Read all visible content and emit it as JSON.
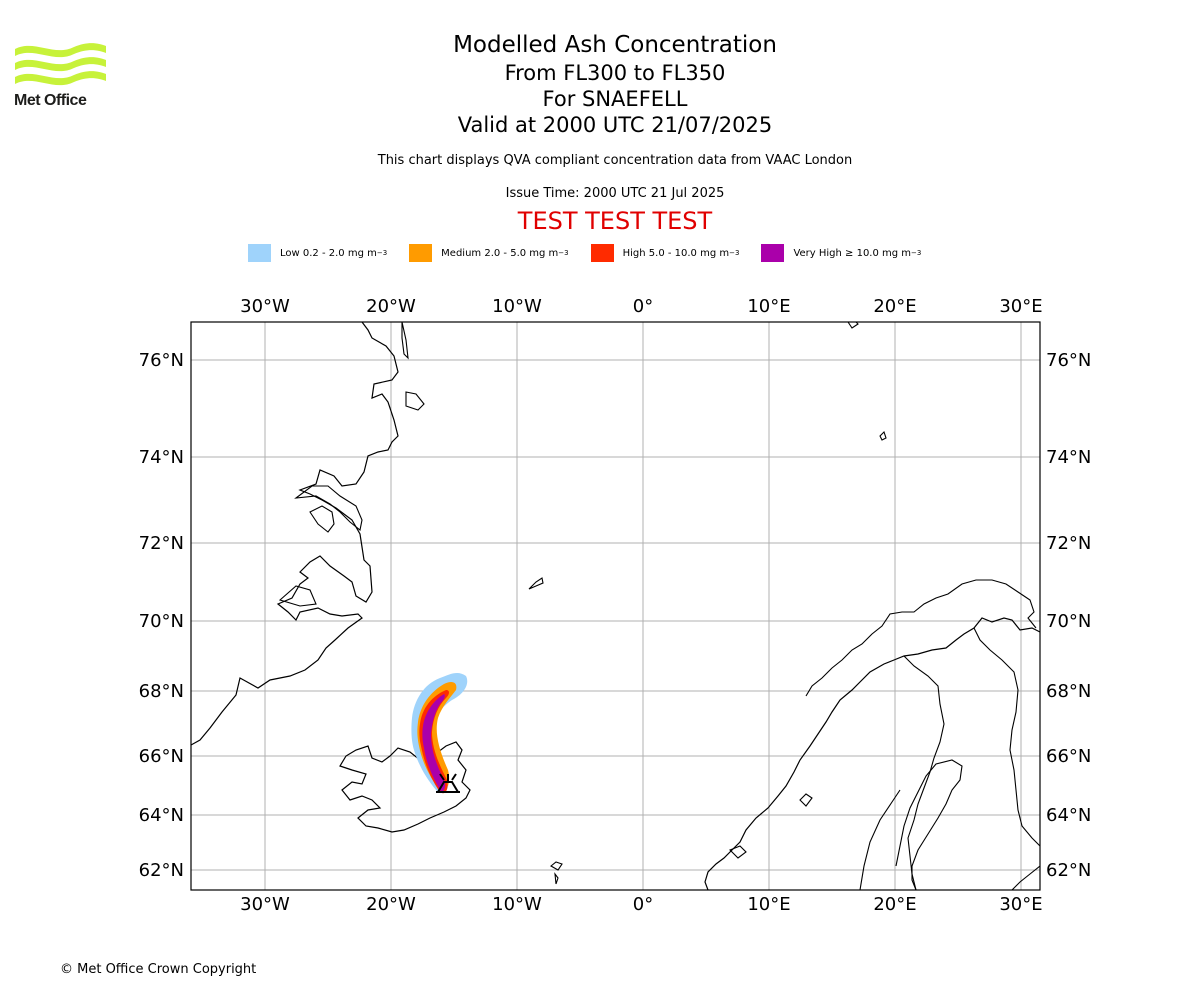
{
  "logo": {
    "text": "Met Office",
    "colors": [
      "#c7f23a",
      "#1d1d1b"
    ]
  },
  "title": {
    "line1": "Modelled Ash Concentration",
    "line2": "From FL300 to FL350",
    "line3": "For SNAEFELL",
    "line4": "Valid at 2000 UTC 21/07/2025"
  },
  "subtitle": "This chart displays QVA compliant concentration data from VAAC London",
  "issue_time": "Issue Time: 2000 UTC 21 Jul 2025",
  "test_banner": "TEST TEST TEST",
  "legend": [
    {
      "label": "Low 0.2 - 2.0 mg m",
      "color": "#9fd3fb"
    },
    {
      "label": "Medium 2.0 - 5.0 mg m",
      "color": "#ff9b00"
    },
    {
      "label": "High 5.0 - 10.0 mg m",
      "color": "#ff2b00"
    },
    {
      "label": "Very High ≥ 10.0 mg m",
      "color": "#aa00aa"
    }
  ],
  "legend_unit_exponent": "−3",
  "map": {
    "lon_ticks": [
      "30°W",
      "20°W",
      "10°W",
      "0°",
      "10°E",
      "20°E",
      "30°E"
    ],
    "lat_ticks": [
      "76°N",
      "74°N",
      "72°N",
      "70°N",
      "68°N",
      "66°N",
      "64°N",
      "62°N"
    ],
    "grid": true,
    "volcano_symbol": "volcano-icon"
  },
  "copyright": "© Met Office Crown Copyright"
}
